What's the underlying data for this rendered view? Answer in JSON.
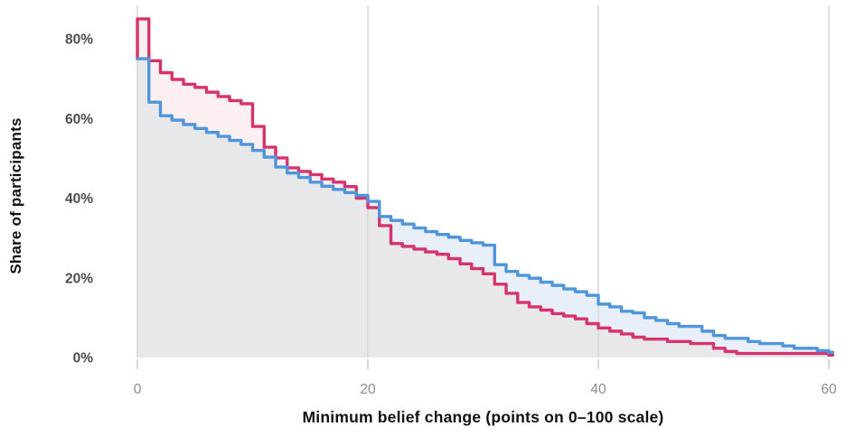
{
  "chart_data": {
    "type": "area",
    "subtype": "step-function (complementary CDF, two overlaid series)",
    "title": "",
    "xlabel": "Minimum belief change (points on 0–100 scale)",
    "ylabel": "Share of participants",
    "xlim": [
      0,
      60.5
    ],
    "ylim": [
      0,
      88
    ],
    "x_ticks": [
      0,
      20,
      40,
      60
    ],
    "y_ticks": [
      0,
      20,
      40,
      60,
      80
    ],
    "y_tick_suffix": "%",
    "grid": "vertical-only",
    "legend": "none",
    "x": [
      0,
      1,
      2,
      3,
      4,
      5,
      6,
      7,
      8,
      9,
      10,
      11,
      12,
      13,
      14,
      15,
      16,
      17,
      18,
      19,
      20,
      21,
      22,
      23,
      24,
      25,
      26,
      27,
      28,
      29,
      30,
      31,
      32,
      33,
      34,
      35,
      36,
      37,
      38,
      39,
      40,
      41,
      42,
      43,
      44,
      45,
      46,
      47,
      48,
      49,
      50,
      51,
      52,
      53,
      54,
      55,
      56,
      57,
      58,
      59,
      60
    ],
    "series": [
      {
        "name": "pink",
        "color": "#d6336c",
        "band_fill": "#fceff1",
        "values_pct": [
          85,
          74.5,
          71.5,
          69.8,
          68.6,
          67.8,
          66.6,
          65.5,
          64.5,
          63.7,
          58,
          52.8,
          50.1,
          47.6,
          46.7,
          45.9,
          44.8,
          44,
          42.9,
          40,
          37.6,
          33.1,
          28.6,
          27.9,
          27.2,
          26.5,
          25.9,
          24.8,
          23.5,
          22.3,
          21,
          18.4,
          16.1,
          13.8,
          12.7,
          11.9,
          11,
          10.4,
          9.7,
          8.5,
          7.4,
          6.6,
          5.9,
          5.1,
          4.6,
          4.6,
          4,
          4,
          3.5,
          3.5,
          2.3,
          1.5,
          1,
          1,
          1,
          1,
          1,
          1,
          1,
          1,
          0.6
        ]
      },
      {
        "name": "blue",
        "color": "#4e95db",
        "band_fill": "#e8eff9",
        "values_pct": [
          75,
          64.1,
          60.7,
          59.6,
          58.5,
          57.5,
          56.5,
          55.5,
          54.5,
          53.5,
          52,
          50.3,
          47.8,
          46.3,
          45.2,
          44,
          43,
          42.2,
          41.4,
          40.7,
          39.2,
          35.4,
          34.4,
          33.5,
          32.5,
          31.6,
          30.9,
          30.2,
          29.4,
          28.8,
          28.2,
          23.3,
          21.6,
          20.6,
          19.9,
          18.9,
          18.1,
          17.2,
          16.5,
          15.6,
          13.4,
          12.7,
          11.6,
          11.2,
          10,
          9.3,
          8.5,
          7.8,
          7.8,
          6.6,
          5.5,
          4.8,
          4.8,
          4,
          3.5,
          3.5,
          2.9,
          2.3,
          2.3,
          1.7,
          1.3
        ]
      }
    ],
    "under_both_fill": "#e8e8ea",
    "gridline_color": "#d9d9d9",
    "tick_mark_color": "#c8c8c8",
    "x_tick_text_color": "#8c8c8c",
    "y_tick_text_color": "#4d4d4d"
  }
}
